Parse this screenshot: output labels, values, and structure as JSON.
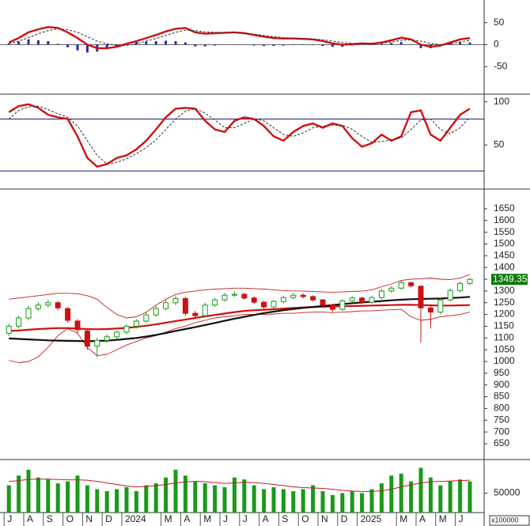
{
  "chart_data": [
    {
      "type": "macd",
      "ylim": [
        -109,
        98
      ],
      "yticks": [
        50,
        0,
        -50
      ],
      "series": [
        {
          "color": "#d01010",
          "values": [
            5,
            15,
            28,
            35,
            40,
            38,
            28,
            15,
            0,
            -8,
            -8,
            -5,
            2,
            8,
            15,
            22,
            30,
            36,
            38,
            28,
            25,
            26,
            27,
            28,
            26,
            22,
            18,
            15,
            14,
            14,
            13,
            12,
            8,
            3,
            0,
            1,
            3,
            2,
            5,
            10,
            16,
            12,
            0,
            -5,
            -2,
            5,
            12,
            15
          ]
        },
        {
          "color": "#333333",
          "dashed": true,
          "values": [
            2,
            8,
            16,
            25,
            32,
            36,
            34,
            28,
            18,
            8,
            2,
            -2,
            -2,
            2,
            8,
            14,
            21,
            28,
            33,
            32,
            29,
            28,
            27,
            27,
            26,
            24,
            21,
            18,
            16,
            15,
            14,
            13,
            11,
            8,
            5,
            3,
            3,
            2,
            3,
            6,
            10,
            11,
            8,
            3,
            0,
            2,
            6,
            10
          ]
        }
      ],
      "histogram": {
        "color": "#2a2ab0",
        "values": [
          3,
          7,
          12,
          10,
          8,
          2,
          -6,
          -13,
          -18,
          -16,
          -10,
          -3,
          4,
          6,
          7,
          8,
          9,
          8,
          5,
          -4,
          -4,
          -2,
          0,
          1,
          0,
          -2,
          -3,
          -3,
          -2,
          -1,
          -1,
          -1,
          -3,
          -5,
          -5,
          -2,
          0,
          0,
          2,
          4,
          6,
          1,
          -8,
          -8,
          -2,
          3,
          6,
          5
        ]
      }
    },
    {
      "type": "stochastic",
      "ylim": [
        0,
        107
      ],
      "yticks": [
        100,
        50
      ],
      "reference_lines": [
        80,
        20
      ],
      "reference_color": "#1a1a80",
      "series": [
        {
          "color": "#d01010",
          "values": [
            88,
            95,
            97,
            93,
            85,
            82,
            80,
            60,
            35,
            25,
            28,
            35,
            38,
            45,
            55,
            68,
            82,
            92,
            93,
            92,
            78,
            68,
            65,
            78,
            82,
            80,
            72,
            60,
            55,
            65,
            72,
            75,
            70,
            75,
            72,
            58,
            48,
            52,
            62,
            55,
            60,
            88,
            90,
            62,
            55,
            70,
            85,
            92
          ]
        },
        {
          "color": "#333333",
          "dashed": true,
          "values": [
            80,
            90,
            94,
            95,
            91,
            86,
            82,
            72,
            55,
            38,
            28,
            30,
            34,
            40,
            47,
            56,
            68,
            80,
            89,
            92,
            87,
            79,
            70,
            70,
            75,
            80,
            78,
            70,
            62,
            60,
            64,
            70,
            72,
            73,
            73,
            68,
            60,
            53,
            54,
            56,
            58,
            68,
            79,
            80,
            68,
            63,
            70,
            82
          ]
        }
      ]
    },
    {
      "type": "candlestick",
      "ylim": [
        586,
        1727
      ],
      "yticks": [
        650,
        700,
        750,
        800,
        850,
        900,
        950,
        1000,
        1050,
        1100,
        1150,
        1200,
        1250,
        1300,
        1350,
        1400,
        1450,
        1500,
        1550,
        1600,
        1650
      ],
      "up_color": "#1a9a1a",
      "down_color": "#d01010",
      "last_color": "#0a7a0a",
      "open": [
        1120,
        1150,
        1185,
        1225,
        1240,
        1250,
        1225,
        1172,
        1130,
        1065,
        1090,
        1105,
        1125,
        1150,
        1172,
        1198,
        1225,
        1250,
        1268,
        1205,
        1195,
        1240,
        1262,
        1282,
        1286,
        1270,
        1252,
        1232,
        1255,
        1272,
        1282,
        1276,
        1262,
        1240,
        1222,
        1258,
        1270,
        1252,
        1272,
        1300,
        1312,
        1335,
        1320,
        1228,
        1210,
        1262,
        1302,
        1332
      ],
      "high": [
        1160,
        1195,
        1238,
        1252,
        1262,
        1258,
        1232,
        1180,
        1140,
        1100,
        1115,
        1132,
        1158,
        1180,
        1208,
        1235,
        1262,
        1278,
        1275,
        1215,
        1250,
        1270,
        1292,
        1298,
        1292,
        1278,
        1258,
        1262,
        1280,
        1292,
        1290,
        1282,
        1266,
        1246,
        1264,
        1278,
        1275,
        1280,
        1308,
        1320,
        1345,
        1340,
        1325,
        1240,
        1270,
        1310,
        1340,
        1356
      ],
      "low": [
        1108,
        1140,
        1175,
        1215,
        1230,
        1218,
        1165,
        1120,
        1050,
        1020,
        1080,
        1095,
        1115,
        1140,
        1165,
        1190,
        1218,
        1240,
        1195,
        1185,
        1188,
        1232,
        1255,
        1275,
        1262,
        1245,
        1222,
        1225,
        1248,
        1265,
        1268,
        1255,
        1232,
        1210,
        1215,
        1250,
        1245,
        1246,
        1265,
        1292,
        1305,
        1315,
        1080,
        1140,
        1200,
        1255,
        1295,
        1325
      ],
      "close": [
        1150,
        1185,
        1225,
        1240,
        1250,
        1228,
        1175,
        1135,
        1065,
        1090,
        1105,
        1125,
        1150,
        1172,
        1198,
        1225,
        1250,
        1268,
        1205,
        1195,
        1240,
        1262,
        1282,
        1286,
        1270,
        1252,
        1232,
        1255,
        1272,
        1282,
        1276,
        1262,
        1240,
        1222,
        1258,
        1270,
        1252,
        1272,
        1300,
        1312,
        1335,
        1322,
        1228,
        1210,
        1262,
        1302,
        1332,
        1349.35
      ],
      "series": [
        {
          "color": "#c02020",
          "width": 0.9,
          "values": [
            1265,
            1270,
            1275,
            1280,
            1285,
            1290,
            1290,
            1288,
            1280,
            1265,
            1230,
            1200,
            1185,
            1190,
            1210,
            1240,
            1265,
            1285,
            1295,
            1300,
            1305,
            1308,
            1310,
            1312,
            1312,
            1310,
            1308,
            1305,
            1302,
            1300,
            1300,
            1298,
            1296,
            1295,
            1296,
            1298,
            1300,
            1305,
            1318,
            1330,
            1345,
            1350,
            1352,
            1355,
            1350,
            1348,
            1355,
            1370
          ]
        },
        {
          "color": "#c02020",
          "width": 0.9,
          "values": [
            1005,
            995,
            1000,
            1020,
            1060,
            1110,
            1140,
            1120,
            1060,
            1025,
            1030,
            1050,
            1070,
            1085,
            1100,
            1110,
            1125,
            1140,
            1150,
            1165,
            1175,
            1185,
            1190,
            1195,
            1200,
            1200,
            1200,
            1202,
            1205,
            1205,
            1208,
            1210,
            1210,
            1208,
            1210,
            1212,
            1215,
            1215,
            1218,
            1220,
            1222,
            1190,
            1175,
            1180,
            1190,
            1195,
            1200,
            1210
          ]
        },
        {
          "color": "#d01010",
          "width": 2.2,
          "values": [
            1130,
            1132,
            1135,
            1138,
            1140,
            1142,
            1142,
            1140,
            1138,
            1137,
            1138,
            1140,
            1143,
            1147,
            1152,
            1158,
            1165,
            1172,
            1178,
            1185,
            1192,
            1198,
            1204,
            1210,
            1215,
            1218,
            1220,
            1222,
            1225,
            1228,
            1230,
            1232,
            1233,
            1234,
            1235,
            1236,
            1237,
            1238,
            1239,
            1240,
            1241,
            1241,
            1240,
            1239,
            1238,
            1238,
            1239,
            1240
          ]
        },
        {
          "color": "#111111",
          "width": 2.2,
          "values": [
            1098,
            1096,
            1094,
            1092,
            1090,
            1089,
            1088,
            1087,
            1086,
            1087,
            1089,
            1092,
            1096,
            1100,
            1106,
            1113,
            1121,
            1130,
            1138,
            1146,
            1155,
            1164,
            1173,
            1182,
            1190,
            1198,
            1206,
            1212,
            1218,
            1223,
            1228,
            1232,
            1236,
            1240,
            1244,
            1248,
            1251,
            1254,
            1257,
            1260,
            1263,
            1265,
            1266,
            1267,
            1268,
            1270,
            1272,
            1275
          ]
        }
      ]
    },
    {
      "type": "volume",
      "ylim": [
        0,
        132000
      ],
      "yticks": [
        50000
      ],
      "unit_label": "x100000",
      "color": "#1a9a1a",
      "categories": [
        "J",
        null,
        "A",
        null,
        "S",
        null,
        "O",
        null,
        "N",
        null,
        "D",
        null,
        "2024",
        null,
        null,
        null,
        "M",
        null,
        "A",
        null,
        "M",
        null,
        "J",
        null,
        "J",
        null,
        "A",
        null,
        "S",
        null,
        "O",
        null,
        "N",
        null,
        "D",
        null,
        "2025",
        null,
        null,
        null,
        "M",
        null,
        "A",
        null,
        "M",
        null,
        "J",
        null
      ],
      "values": [
        70000,
        95000,
        110000,
        90000,
        85000,
        75000,
        80000,
        95000,
        70000,
        60000,
        55000,
        60000,
        65000,
        55000,
        70000,
        75000,
        90000,
        110000,
        95000,
        80000,
        75000,
        70000,
        65000,
        90000,
        85000,
        70000,
        60000,
        65000,
        60000,
        55000,
        60000,
        70000,
        55000,
        45000,
        50000,
        55000,
        50000,
        60000,
        75000,
        95000,
        100000,
        80000,
        115000,
        90000,
        70000,
        80000,
        85000,
        80000
      ],
      "line": {
        "color": "#c02020",
        "values": [
          80000,
          82000,
          85000,
          86000,
          86000,
          85000,
          84000,
          84000,
          83000,
          80000,
          76000,
          72000,
          68000,
          66000,
          67000,
          69000,
          72000,
          76000,
          79000,
          80000,
          79000,
          77000,
          75000,
          76000,
          78000,
          77000,
          75000,
          72000,
          69000,
          66000,
          64000,
          63000,
          62000,
          60000,
          57000,
          55000,
          54000,
          54000,
          56000,
          60000,
          66000,
          71000,
          76000,
          79000,
          80000,
          81000,
          82000,
          83000
        ]
      }
    }
  ]
}
